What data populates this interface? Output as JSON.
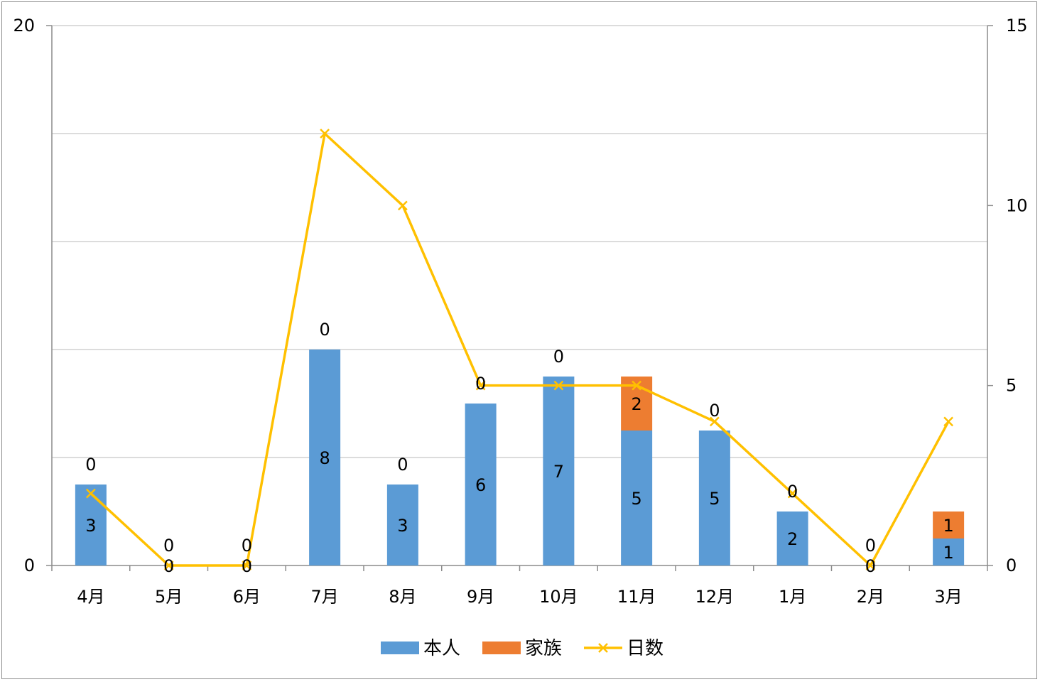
{
  "chart_data": {
    "type": "bar",
    "stacked": true,
    "categories": [
      "4月",
      "5月",
      "6月",
      "7月",
      "8月",
      "9月",
      "10月",
      "11月",
      "12月",
      "1月",
      "2月",
      "3月"
    ],
    "series": [
      {
        "name": "本人",
        "type": "bar",
        "axis": "left",
        "color": "#5B9BD5",
        "values": [
          3,
          0,
          0,
          8,
          3,
          6,
          7,
          5,
          5,
          2,
          0,
          1
        ],
        "labels": [
          "3",
          "0",
          "0",
          "8",
          "3",
          "6",
          "7",
          "5",
          "5",
          "2",
          "0",
          "1"
        ]
      },
      {
        "name": "家族",
        "type": "bar",
        "axis": "left",
        "color": "#ED7D31",
        "values": [
          0,
          0,
          0,
          0,
          0,
          0,
          0,
          2,
          0,
          0,
          0,
          1
        ],
        "labels": [
          "0",
          "0",
          "0",
          "0",
          "0",
          "0",
          "0",
          "2",
          "0",
          "0",
          "0",
          "1"
        ]
      },
      {
        "name": "日数",
        "type": "line",
        "axis": "right",
        "color": "#FFC000",
        "marker": "x",
        "values": [
          2,
          0,
          0,
          12,
          10,
          5,
          5,
          5,
          4,
          2,
          0,
          4
        ]
      }
    ],
    "y_left": {
      "min": 0,
      "max": 20,
      "tick_labels": [
        "0",
        "20"
      ],
      "gridlines": 5
    },
    "y_right": {
      "min": 0,
      "max": 15,
      "tick_labels": [
        "0",
        "5",
        "10",
        "15"
      ]
    },
    "grid": true,
    "legend_position": "bottom",
    "title": "",
    "xlabel": "",
    "ylabel": ""
  }
}
